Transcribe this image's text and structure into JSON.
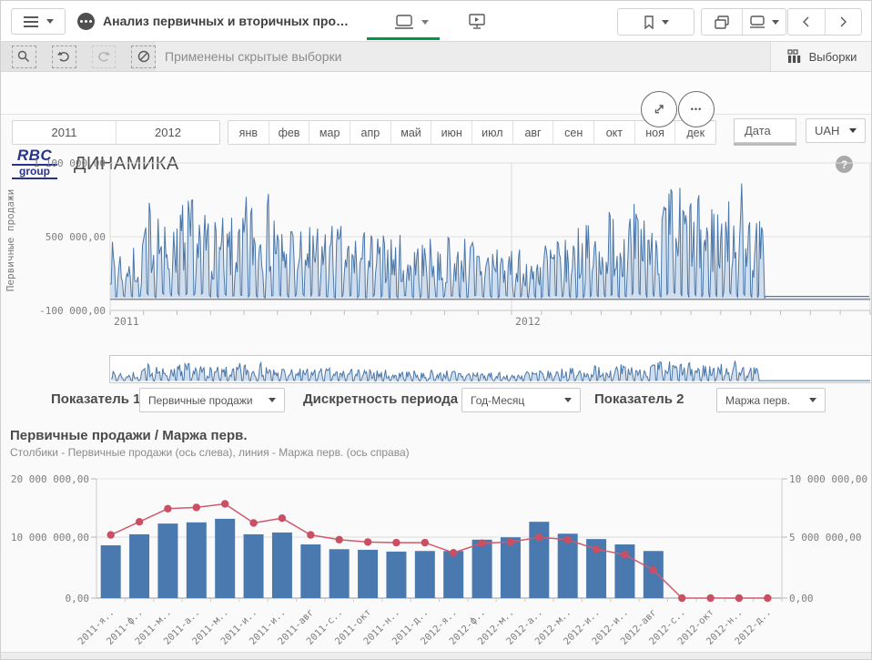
{
  "topbar": {
    "app_title": "Анализ первичных и вторичных про…"
  },
  "selections_bar": {
    "message": "Применены скрытые выборки",
    "selections_label": "Выборки"
  },
  "header": {
    "logo_line1": "RBC",
    "logo_line2": "group",
    "title": "ДИНАМИКА",
    "help_label": "?"
  },
  "filters": {
    "years": [
      "2011",
      "2012"
    ],
    "months": [
      "янв",
      "фев",
      "мар",
      "апр",
      "май",
      "июн",
      "июл",
      "авг",
      "сен",
      "окт",
      "ноя",
      "дек"
    ],
    "date_label": "Дата",
    "currency": "UAH",
    "more_label": "•••"
  },
  "controls": [
    {
      "label": "Показатель 1",
      "value": "Первичные продажи"
    },
    {
      "label": "Дискретность периода",
      "value": "Год-Месяц"
    },
    {
      "label": "Показатель 2",
      "value": "Маржа перв."
    }
  ],
  "chart_data": [
    {
      "type": "area",
      "ylabel": "Первичные продажи",
      "y_ticks": [
        "1 100 000,00",
        "500 000,00",
        "-100 000,00"
      ],
      "ylim": [
        -100000,
        1100000
      ],
      "x_ticks": [
        "2011",
        "2012"
      ],
      "grid": true,
      "description": "Daily values of Первичные продажи for 2011-2012; spiky daily pattern 0 to ~1 050 000, drops to ~0 after mid-Sep 2012",
      "points_per_month": 30,
      "monthly_peaks": [
        500000,
        900000,
        880000,
        700000,
        920000,
        700000,
        650000,
        600000,
        560000,
        520000,
        560000,
        520000,
        420000,
        560000,
        650000,
        800000,
        850000,
        1000000,
        900000,
        1050000,
        700000,
        0,
        0,
        0
      ],
      "flat_from_month": 20.5,
      "flat_value": 15000,
      "seed": 7,
      "line_color": "#4a76a8",
      "fill_color": "#cfdded"
    },
    {
      "type": "bar",
      "title": "Первичные продажи / Маржа перв.",
      "subtitle": "Столбики - Первичные продажи (ось слева), линия - Маржа перв. (ось справа)",
      "categories": [
        "2011-янв",
        "2011-фев",
        "2011-мар",
        "2011-апр",
        "2011-май",
        "2011-июн",
        "2011-июл",
        "2011-авг",
        "2011-сен",
        "2011-окт",
        "2011-ноя",
        "2011-дек",
        "2012-янв",
        "2012-фев",
        "2012-мар",
        "2012-апр",
        "2012-май",
        "2012-июн",
        "2012-июл",
        "2012-авг",
        "2012-сен",
        "2012-окт",
        "2012-ноя",
        "2012-дек"
      ],
      "category_labels": [
        "2011-я..",
        "2011-ф..",
        "2011-м..",
        "2011-а..",
        "2011-м..",
        "2011-и..",
        "2011-и..",
        "2011-авг",
        "2011-с..",
        "2011-окт",
        "2011-н..",
        "2011-д..",
        "2012-я..",
        "2012-ф..",
        "2012-м..",
        "2012-а..",
        "2012-м..",
        "2012-и..",
        "2012-и..",
        "2012-авг",
        "2012-с..",
        "2012-окт",
        "2012-н..",
        "2012-д.."
      ],
      "series": [
        {
          "name": "Первичные продажи",
          "type": "bar",
          "axis": "left",
          "values": [
            8850000,
            10700000,
            12500000,
            12700000,
            13300000,
            10700000,
            11000000,
            9000000,
            8200000,
            8100000,
            7800000,
            7900000,
            7900000,
            9800000,
            10200000,
            12800000,
            10800000,
            9900000,
            9000000,
            7900000,
            0,
            0,
            0,
            0
          ]
        },
        {
          "name": "Маржа перв.",
          "type": "line",
          "axis": "right",
          "values": [
            5300000,
            6400000,
            7500000,
            7600000,
            7900000,
            6300000,
            6700000,
            5300000,
            4900000,
            4700000,
            4650000,
            4650000,
            3800000,
            4600000,
            4700000,
            5100000,
            4900000,
            4100000,
            3650000,
            2350000,
            0,
            0,
            0,
            0
          ]
        }
      ],
      "left_axis": {
        "ticks": [
          "20 000 000,00",
          "10 000 000,00",
          "0,00"
        ],
        "max": 20000000
      },
      "right_axis": {
        "ticks": [
          "10 000 000,00",
          "5 000 000,00",
          "0,00"
        ],
        "max": 10000000
      },
      "colors": {
        "bar": "#4a79af",
        "line": "#d05a6e",
        "marker": "#ca4f63"
      }
    }
  ]
}
